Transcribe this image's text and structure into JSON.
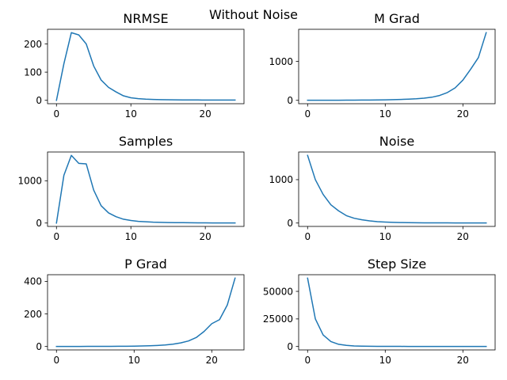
{
  "suptitle": "Without Noise",
  "line_color": "#1f77b4",
  "chart_data": [
    {
      "type": "line",
      "title": "NRMSE",
      "xlabel": "",
      "ylabel": "",
      "xlim": [
        -1.2,
        25.2
      ],
      "ylim": [
        -12,
        252
      ],
      "xticks": [
        0,
        10,
        20
      ],
      "yticks": [
        0,
        100,
        200
      ],
      "ytick_labels": [
        "0",
        "100",
        "200"
      ],
      "grid": false,
      "series": [
        {
          "x": [
            0,
            1,
            2,
            3,
            4,
            5,
            6,
            7,
            8,
            9,
            10,
            11,
            12,
            13,
            14,
            15,
            16,
            17,
            18,
            19,
            20,
            21,
            22,
            23,
            24
          ],
          "values": [
            0,
            130,
            240,
            232,
            200,
            122,
            72,
            46,
            30,
            16,
            9,
            6,
            4,
            3,
            2.5,
            2,
            1.8,
            1.5,
            1.3,
            1.2,
            1.1,
            1,
            1,
            1,
            1
          ]
        }
      ]
    },
    {
      "type": "line",
      "title": "M Grad",
      "xlabel": "",
      "ylabel": "",
      "xlim": [
        -1.15,
        24.15
      ],
      "ylim": [
        -87,
        1827
      ],
      "xticks": [
        0,
        10,
        20
      ],
      "yticks": [
        0,
        1000
      ],
      "ytick_labels": [
        "0",
        "1000"
      ],
      "grid": false,
      "series": [
        {
          "x": [
            0,
            1,
            2,
            3,
            4,
            5,
            6,
            7,
            8,
            9,
            10,
            11,
            12,
            13,
            14,
            15,
            16,
            17,
            18,
            19,
            20,
            21,
            22,
            23
          ],
          "values": [
            2,
            2,
            2,
            3,
            3,
            4,
            5,
            6,
            8,
            10,
            13,
            17,
            23,
            30,
            40,
            55,
            80,
            125,
            200,
            320,
            520,
            800,
            1100,
            1740
          ]
        }
      ]
    },
    {
      "type": "line",
      "title": "Samples",
      "xlabel": "",
      "ylabel": "",
      "xlim": [
        -1.2,
        25.2
      ],
      "ylim": [
        -80,
        1680
      ],
      "xticks": [
        0,
        10,
        20
      ],
      "yticks": [
        0,
        1000
      ],
      "ytick_labels": [
        "0",
        "1000"
      ],
      "grid": false,
      "series": [
        {
          "x": [
            0,
            1,
            2,
            3,
            4,
            5,
            6,
            7,
            8,
            9,
            10,
            11,
            12,
            13,
            14,
            15,
            16,
            17,
            18,
            19,
            20,
            21,
            22,
            23,
            24
          ],
          "values": [
            0,
            1130,
            1600,
            1410,
            1400,
            780,
            410,
            240,
            150,
            90,
            60,
            40,
            30,
            20,
            15,
            12,
            10,
            8,
            6,
            5,
            4,
            3,
            3,
            3,
            3
          ]
        }
      ]
    },
    {
      "type": "line",
      "title": "Noise",
      "xlabel": "",
      "ylabel": "",
      "xlim": [
        -1.15,
        24.15
      ],
      "ylim": [
        -78,
        1638
      ],
      "xticks": [
        0,
        10,
        20
      ],
      "yticks": [
        0,
        1000
      ],
      "ytick_labels": [
        "0",
        "1000"
      ],
      "grid": false,
      "series": [
        {
          "x": [
            0,
            1,
            2,
            3,
            4,
            5,
            6,
            7,
            8,
            9,
            10,
            11,
            12,
            13,
            14,
            15,
            16,
            17,
            18,
            19,
            20,
            21,
            22,
            23
          ],
          "values": [
            1560,
            1000,
            660,
            420,
            280,
            170,
            110,
            75,
            50,
            32,
            22,
            15,
            11,
            8,
            6,
            5,
            4,
            3,
            3,
            2,
            2,
            2,
            2,
            2
          ]
        }
      ]
    },
    {
      "type": "line",
      "title": "P Grad",
      "xlabel": "",
      "ylabel": "",
      "xlim": [
        -1.15,
        24.15
      ],
      "ylim": [
        -21,
        441
      ],
      "xticks": [
        0,
        10,
        20
      ],
      "yticks": [
        0,
        200,
        400
      ],
      "ytick_labels": [
        "0",
        "200",
        "400"
      ],
      "grid": false,
      "series": [
        {
          "x": [
            0,
            1,
            2,
            3,
            4,
            5,
            6,
            7,
            8,
            9,
            10,
            11,
            12,
            13,
            14,
            15,
            16,
            17,
            18,
            19,
            20,
            21,
            22,
            23
          ],
          "values": [
            0.5,
            0.5,
            0.5,
            0.5,
            0.6,
            0.7,
            0.8,
            1,
            1.3,
            1.7,
            2.2,
            3,
            4.5,
            6.5,
            9.5,
            14,
            22,
            34,
            55,
            92,
            140,
            165,
            255,
            420
          ]
        }
      ]
    },
    {
      "type": "line",
      "title": "Step Size",
      "xlabel": "",
      "ylabel": "",
      "xlim": [
        -1.15,
        24.15
      ],
      "ylim": [
        -3100,
        65100
      ],
      "xticks": [
        0,
        10,
        20
      ],
      "yticks": [
        0,
        25000,
        50000
      ],
      "ytick_labels": [
        "0",
        "25000",
        "50000"
      ],
      "grid": false,
      "series": [
        {
          "x": [
            0,
            1,
            2,
            3,
            4,
            5,
            6,
            7,
            8,
            9,
            10,
            11,
            12,
            13,
            14,
            15,
            16,
            17,
            18,
            19,
            20,
            21,
            22,
            23
          ],
          "values": [
            62000,
            25000,
            10500,
            4500,
            2000,
            1000,
            500,
            300,
            200,
            150,
            120,
            100,
            90,
            80,
            70,
            60,
            50,
            45,
            40,
            35,
            30,
            30,
            30,
            30
          ]
        }
      ]
    }
  ]
}
